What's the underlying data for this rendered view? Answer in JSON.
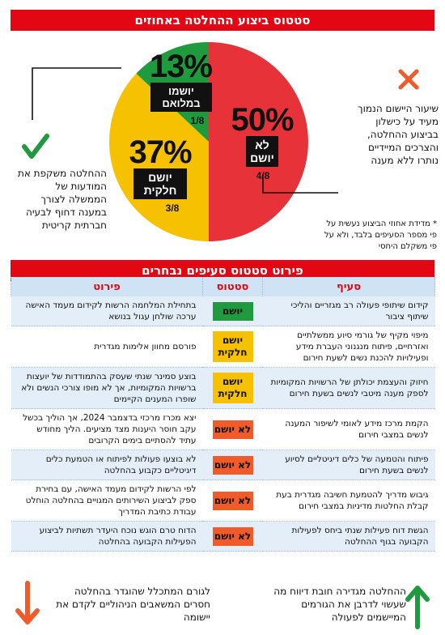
{
  "header": {
    "title": "סטטוס ביצוע ההחלטה באחוזים"
  },
  "colors": {
    "red": "#e8323a",
    "yellow": "#f5c100",
    "green": "#1f9a3e",
    "banner": "#e30613"
  },
  "chart_data": {
    "type": "pie",
    "slices": [
      {
        "label": "לא יושם",
        "value": 50,
        "pct_text": "50%",
        "frac_text": "4/8",
        "color": "#e8323a"
      },
      {
        "label": "יושם חלקית",
        "value": 37,
        "pct_text": "37%",
        "frac_text": "3/8",
        "color": "#f5c100"
      },
      {
        "label": "יושמו במלואם",
        "value": 13,
        "pct_text": "13%",
        "frac_text": "1/8",
        "color": "#1f9a3e"
      }
    ]
  },
  "icons": {
    "x_mark": "x-icon",
    "check_mark": "check-icon",
    "arrow_down": "arrow-down-icon",
    "arrow_up": "arrow-up-icon"
  },
  "side_notes": {
    "right_note": "שיעור היישום הנמוך מעיד על כישלון בביצוע ההחלטה, והצרכים המיידיים נותרו ללא מענה",
    "left_note": "ההחלטה משקפת את המודעות של הממשלה לצורך במענה דחוף לבעיה חברתית קריטית",
    "footnote": "* מדידת אחוזי הביצוע נעשית על פי מספר הסעיפים בלבד, ולא על פי משקלם היחסי"
  },
  "table_section": {
    "title": "פירוט סטטוס סעיפים נבחרים",
    "headers": {
      "clause": "סעיף",
      "status": "סטטוס",
      "details": "פירוט"
    },
    "rows": [
      {
        "clause": "קידום שיתופי פעולה רב מגזריים והליכי שיתוף ציבור",
        "status": "יושם",
        "tone": "green",
        "details": "בתחילת המלחמה הרשות לקידום מעמד האישה ערכה שולחן עגול בנושא"
      },
      {
        "clause": "מיפוי מקיף של גורמי סיוע ממשלתיים ואזרחיים, פיתוח מנגנוני העברת מידע ופעילויות להכנת נשים לשעת חירום",
        "status": "יושם חלקית",
        "tone": "yellow",
        "details": "פורסם מחוון אלימות מגדרית"
      },
      {
        "clause": "חיזוק והעצמת יכולתן של הרשויות המקומיות לספק מענה מיטבי לנשים בשעת חירום",
        "status": "יושם חלקית",
        "tone": "yellow",
        "details": "בוצע סמינר שנתי שעסק בהתמודדות של יועצות ברשויות המקומיות, אך לא מופו צורכי הנשים ולא שופרו המענים הקיימים"
      },
      {
        "clause": "הקמת מרכז מידע לאומי לשיפור המענה לנשים במצבי חירום",
        "status": "לא יושם",
        "tone": "red",
        "details": "יצא מכרז מרכזי בדצמבר 2024, אך הוליך בכשל עקב חוסר היענות מצד מציעים. הליך מחודש עתיד להסתיים בימים הקרובים"
      },
      {
        "clause": "פיתוח והטמעה של כלים דיגיטליים לסיוע לנשים בשעת חירום",
        "status": "לא יושם",
        "tone": "red",
        "details": "לא בוצעו פעולות לפיתוח או הטמעת כלים דיגיטליים כקבוע בהחלטה"
      },
      {
        "clause": "גיבוש מדריך להטמעת חשיבה מגדרית בעת קבלת החלטות מדיניות במצבי חירום",
        "status": "לא יושם",
        "tone": "red",
        "details": "לפי הרשות לקידום מעמד האישה, עם בחירת ספק לביצוע השירותים המגויים בהחלטה הוחלט עבודת כתיבת המדריך"
      },
      {
        "clause": "הגשת דוח פעילות שנתי ביחס לפעילות הקבועה בגוף ההחלטה",
        "status": "לא יושם",
        "tone": "red",
        "details": "הדוח טרם הוגש נוכח היעדר תשתיות לביצוע הפעילות הקבועה בהחלטה"
      }
    ]
  },
  "footer": {
    "left_note": "לגורם המתכלל שהוגדר בהחלטה חסרים המשאבים הניהוליים לקדם את יישומה",
    "right_note": "ההחלטה מגדירה חובת דיווח מה שעשוי לדרבן את הגורמים המיישמים לפעולה"
  }
}
